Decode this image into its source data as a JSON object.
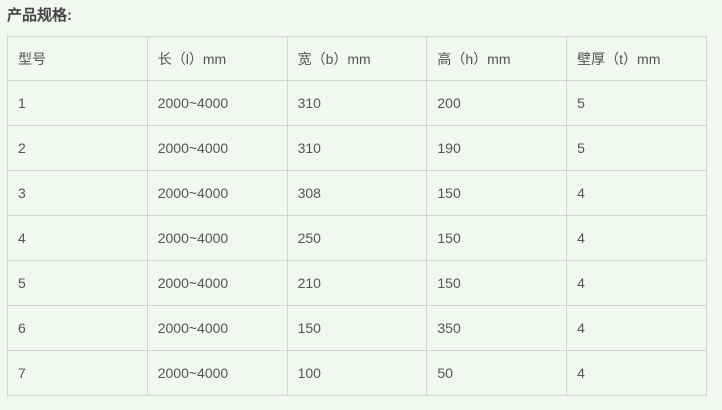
{
  "title": "产品规格:",
  "table": {
    "headers": [
      "型号",
      "长（l）mm",
      "宽（b）mm",
      "高（h）mm",
      "壁厚（t）mm"
    ],
    "rows": [
      [
        "1",
        "2000~4000",
        "310",
        "200",
        "5"
      ],
      [
        "2",
        "2000~4000",
        "310",
        "190",
        "5"
      ],
      [
        "3",
        "2000~4000",
        "308",
        "150",
        "4"
      ],
      [
        "4",
        "2000~4000",
        "250",
        "150",
        "4"
      ],
      [
        "5",
        "2000~4000",
        "210",
        "150",
        "4"
      ],
      [
        "6",
        "2000~4000",
        "150",
        "350",
        "4"
      ],
      [
        "7",
        "2000~4000",
        "100",
        "50",
        "4"
      ]
    ]
  }
}
